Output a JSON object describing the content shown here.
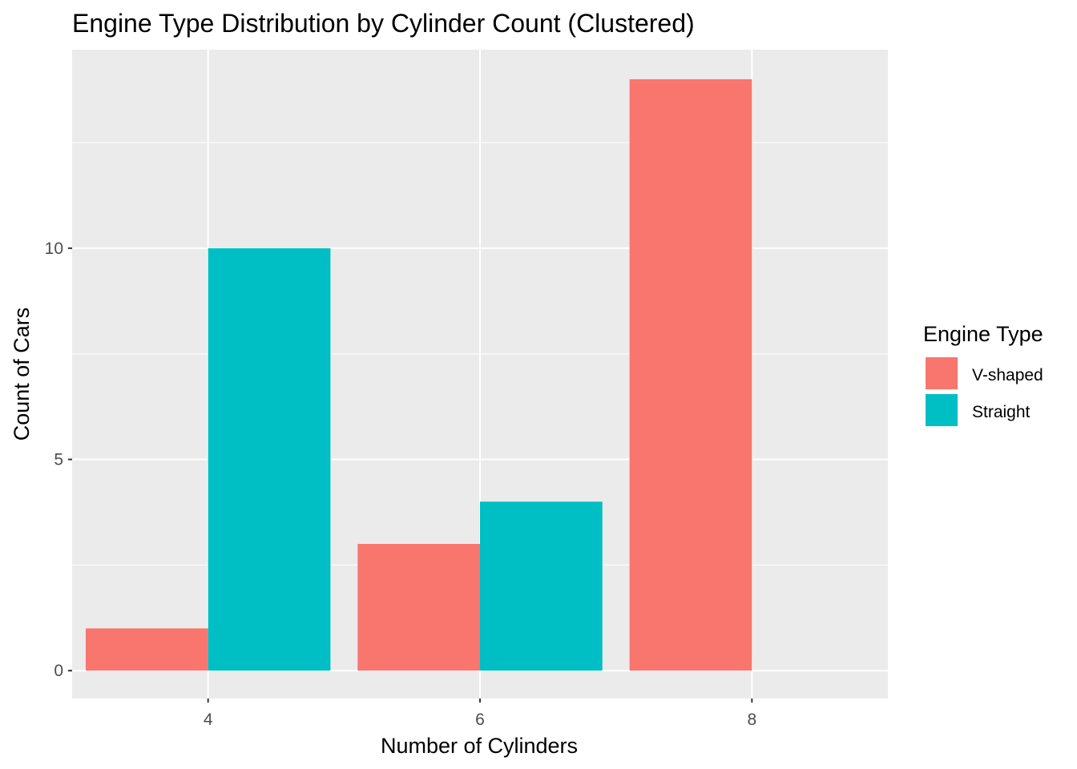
{
  "chart_data": {
    "type": "bar",
    "title": "Engine Type Distribution by Cylinder Count (Clustered)",
    "xlabel": "Number of Cylinders",
    "ylabel": "Count of Cars",
    "categories": [
      "4",
      "6",
      "8"
    ],
    "x_range": [
      3,
      9
    ],
    "x_ticks": [
      "4",
      "6",
      "8"
    ],
    "ylim": [
      -0.66,
      14.7
    ],
    "y_ticks": [
      0,
      5,
      10
    ],
    "y_tick_labels": [
      "0",
      "5",
      "10"
    ],
    "grid": true,
    "legend": {
      "title": "Engine Type",
      "placement": "right"
    },
    "series": [
      {
        "name": "V-shaped",
        "color": "#F8766D",
        "values": [
          1,
          3,
          14
        ]
      },
      {
        "name": "Straight",
        "color": "#00BFC4",
        "values": [
          10,
          4,
          0
        ]
      }
    ],
    "panel_color": "#EBEBEB",
    "grid_color": "#FFFFFF"
  }
}
